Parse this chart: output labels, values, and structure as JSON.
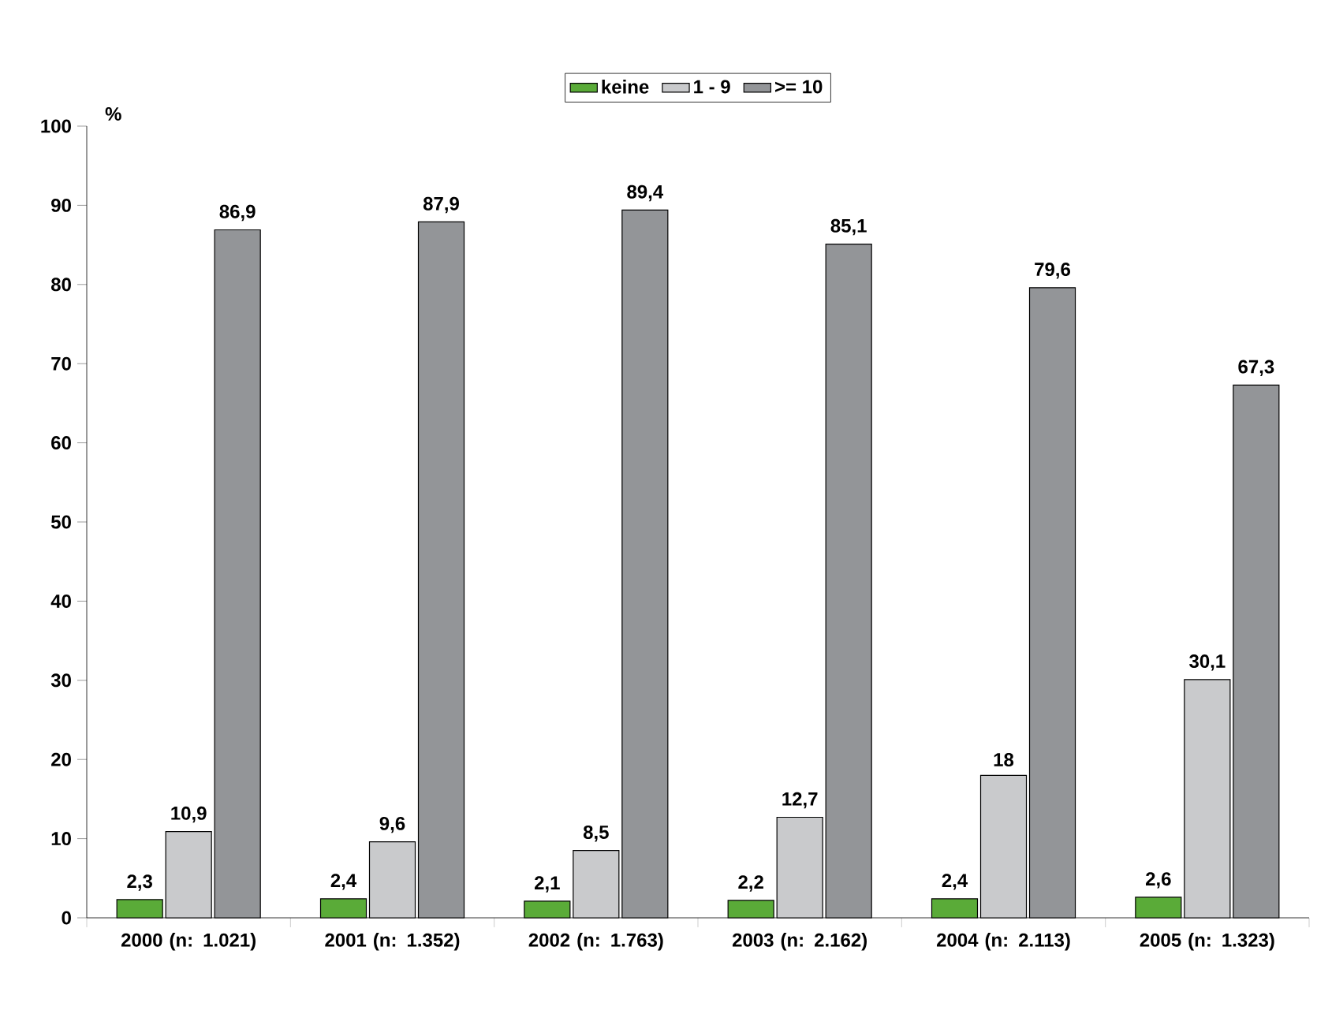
{
  "chart_data": {
    "type": "bar",
    "ylabel": "%",
    "categories": [
      "2000 (n: 1.021)",
      "2001 (n: 1.352)",
      "2002 (n: 1.763)",
      "2003 (n: 2.162)",
      "2004 (n: 2.113)",
      "2005 (n: 1.323)"
    ],
    "series": [
      {
        "name": "keine",
        "color": "#5aab38",
        "values": [
          2.3,
          2.4,
          2.1,
          2.2,
          2.4,
          2.6
        ],
        "value_labels": [
          "2,3",
          "2,4",
          "2,1",
          "2,2",
          "2,4",
          "2,6"
        ]
      },
      {
        "name": "1 - 9",
        "color": "#c9cacc",
        "values": [
          10.9,
          9.6,
          8.5,
          12.7,
          18,
          30.1
        ],
        "value_labels": [
          "10,9",
          "9,6",
          "8,5",
          "12,7",
          "18",
          "30,1"
        ]
      },
      {
        "name": ">= 10",
        "color": "#939598",
        "values": [
          86.9,
          87.9,
          89.4,
          85.1,
          79.6,
          67.3
        ],
        "value_labels": [
          "86,9",
          "87,9",
          "89,4",
          "85,1",
          "79,6",
          "67,3"
        ]
      }
    ],
    "ylim": [
      0,
      100
    ],
    "yticks": [
      0,
      10,
      20,
      30,
      40,
      50,
      60,
      70,
      80,
      90,
      100
    ],
    "legend": "top"
  }
}
